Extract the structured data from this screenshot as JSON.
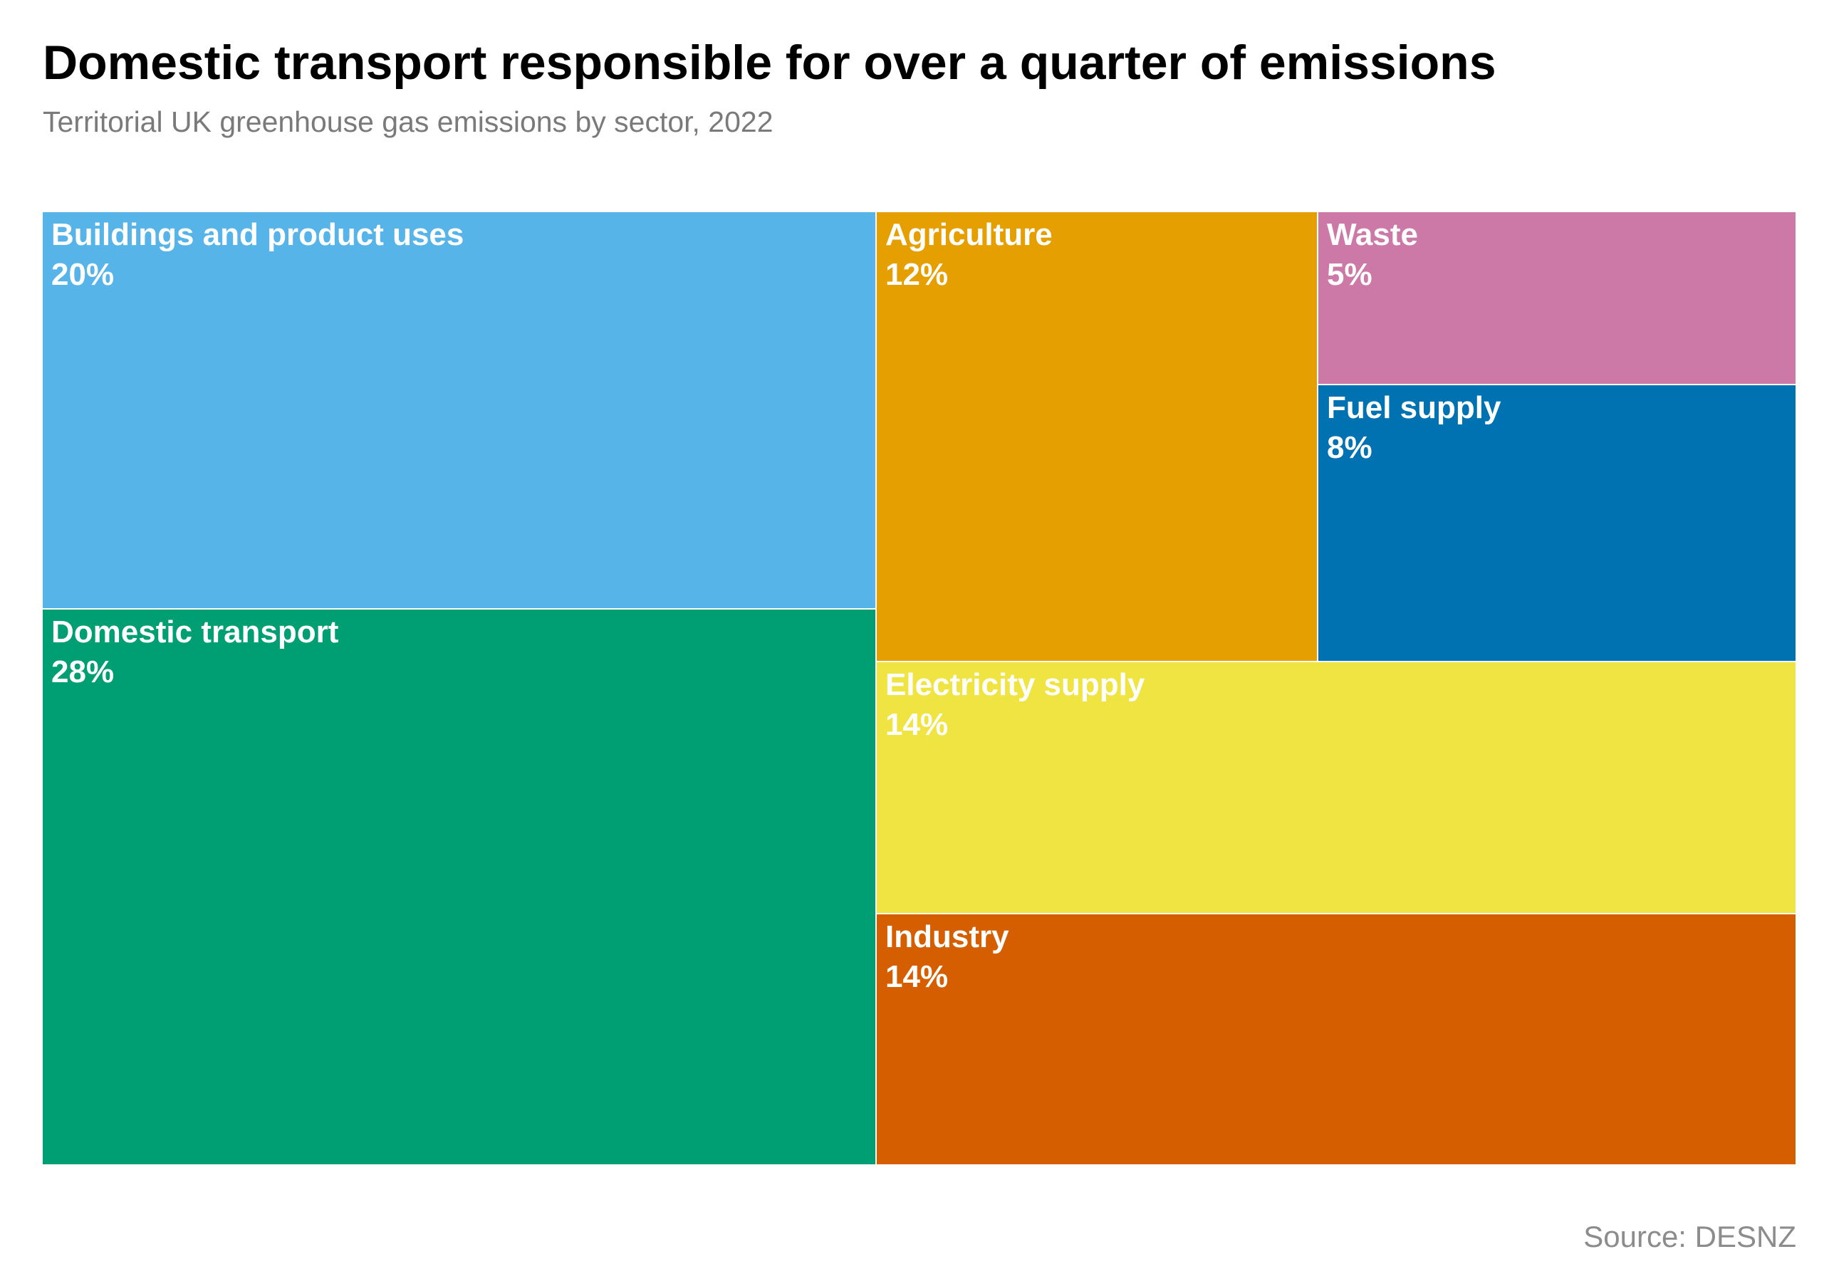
{
  "title": "Domestic transport responsible for over a quarter of emissions",
  "subtitle": "Territorial UK greenhouse gas emissions by sector, 2022",
  "source": "Source: DESNZ",
  "chart_data": {
    "type": "treemap",
    "title": "Domestic transport responsible for over a quarter of emissions",
    "subtitle": "Territorial UK greenhouse gas emissions by sector, 2022",
    "unit": "%",
    "items": [
      {
        "name": "Buildings and product uses",
        "value": 20,
        "label": "20%",
        "color": "#56B4E9"
      },
      {
        "name": "Domestic transport",
        "value": 28,
        "label": "28%",
        "color": "#009E73"
      },
      {
        "name": "Agriculture",
        "value": 12,
        "label": "12%",
        "color": "#E69F00"
      },
      {
        "name": "Waste",
        "value": 5,
        "label": "5%",
        "color": "#CC79A7"
      },
      {
        "name": "Fuel supply",
        "value": 8,
        "label": "8%",
        "color": "#0072B2"
      },
      {
        "name": "Electricity supply",
        "value": 14,
        "label": "14%",
        "color": "#F0E442"
      },
      {
        "name": "Industry",
        "value": 14,
        "label": "14%",
        "color": "#D55E00"
      }
    ]
  }
}
